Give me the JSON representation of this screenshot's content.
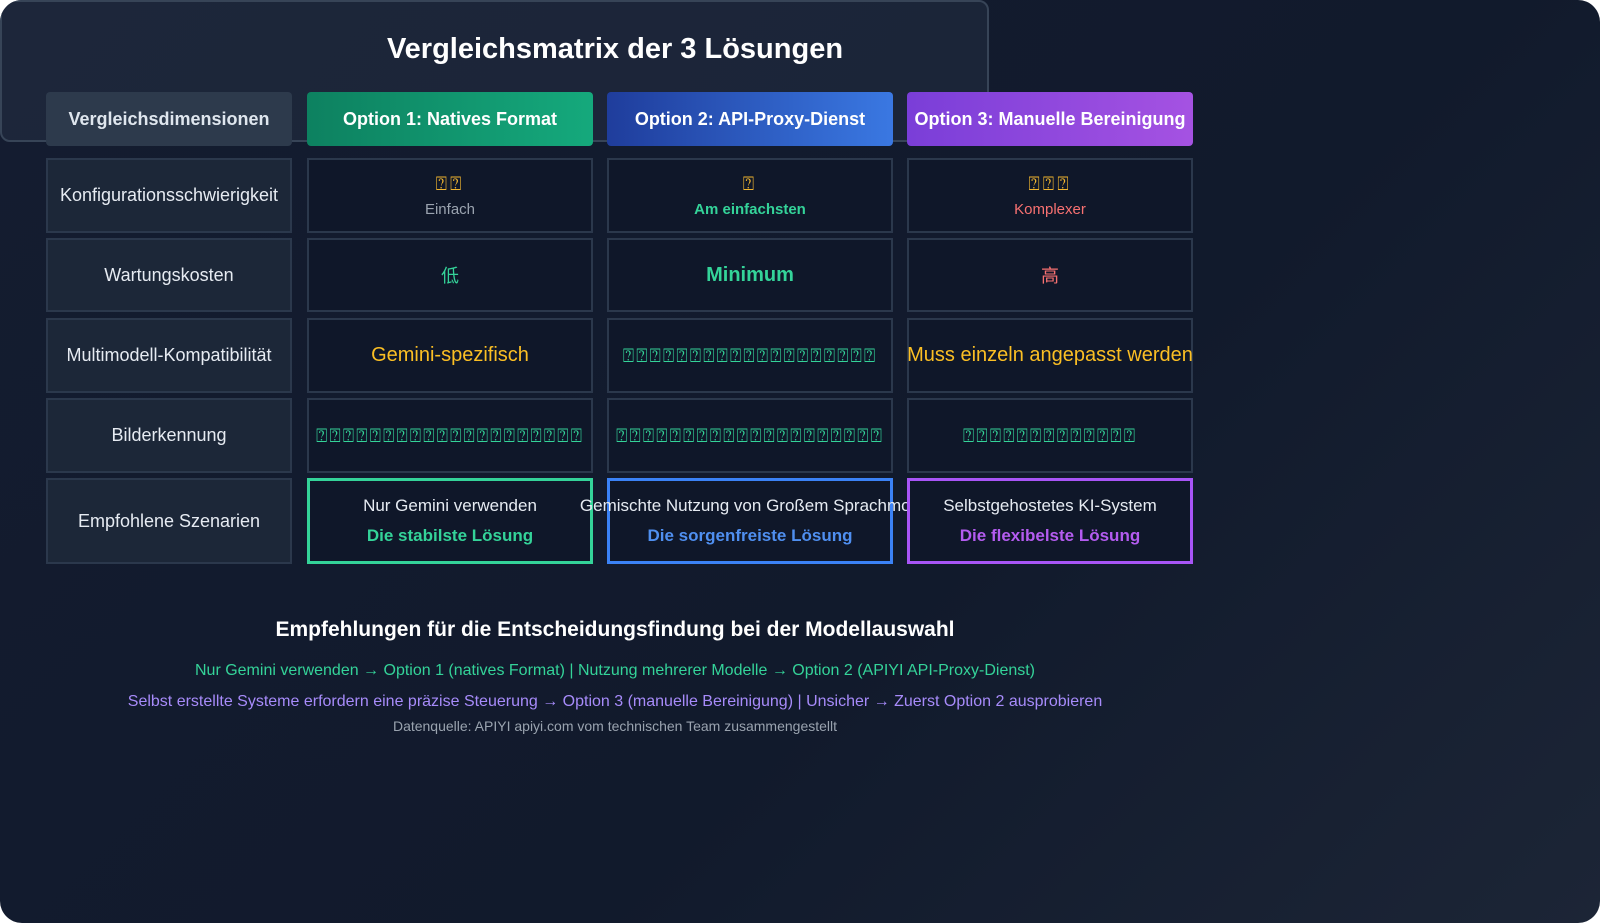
{
  "title": "Vergleichsmatrix der 3 Lösungen",
  "table": {
    "header": [
      "Vergleichsdimensionen",
      "Option 1: Natives Format",
      "Option 2: API-Proxy-Dienst",
      "Option 3: Manuelle Bereinigung"
    ],
    "rows": [
      {
        "dimension": "Konfigurationsschwierigkeit",
        "cells": [
          {
            "icons": "⍰⍰",
            "label": "Einfach"
          },
          {
            "icons": "⍰",
            "label": "Am einfachsten"
          },
          {
            "icons": "⍰⍰⍰",
            "label": "Komplexer"
          }
        ]
      },
      {
        "dimension": "Wartungskosten",
        "cells": [
          "低",
          "Minimum",
          "高"
        ]
      },
      {
        "dimension": "Multimodell-Kompatibilität",
        "cells": [
          "Gemini-spezifisch",
          "⍰⍰⍰⍰⍰⍰⍰⍰⍰⍰⍰⍰⍰⍰⍰⍰⍰⍰⍰",
          "Muss einzeln angepasst werden"
        ]
      },
      {
        "dimension": "Bilderkennung",
        "cells": [
          "⍰⍰⍰⍰⍰⍰⍰⍰⍰⍰⍰⍰⍰⍰⍰⍰⍰⍰⍰⍰",
          "⍰⍰⍰⍰⍰⍰⍰⍰⍰⍰⍰⍰⍰⍰⍰⍰⍰⍰⍰⍰",
          "⍰⍰⍰⍰⍰⍰⍰⍰⍰⍰⍰⍰⍰"
        ]
      },
      {
        "dimension": "Empfohlene Szenarien",
        "cells": [
          {
            "text": "Nur Gemini verwenden",
            "highlight": "Die stabilste Lösung"
          },
          {
            "text": "Gemischte Nutzung von Großem Sprachmod",
            "highlight": "Die sorgenfreiste Lösung"
          },
          {
            "text": "Selbstgehostetes KI-System",
            "highlight": "Die flexibelste Lösung"
          }
        ]
      }
    ]
  },
  "recommendation": {
    "title": "Empfehlungen für die Entscheidungsfindung bei der Modellauswahl",
    "line1": "Nur Gemini verwenden → Option 1 (natives Format) | Nutzung mehrerer Modelle → Option 2 (APIYI API-Proxy-Dienst)",
    "line2": "Selbst erstellte Systeme erfordern eine präzise Steuerung → Option 3 (manuelle Bereinigung) | Unsicher → Zuerst Option 2 ausprobieren",
    "source": "Datenquelle: APIYI apiyi.com vom technischen Team zusammengestellt"
  }
}
